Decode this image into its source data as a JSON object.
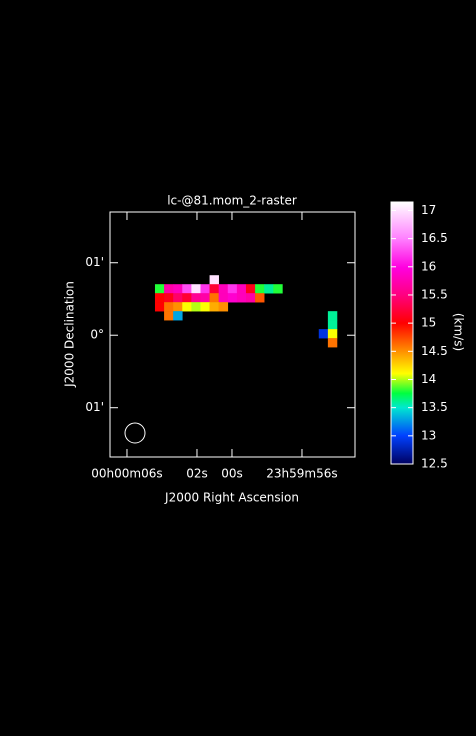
{
  "chart_data": {
    "type": "heatmap",
    "title": "lc-@81.mom_2-raster",
    "xlabel": "J2000 Right Ascension",
    "ylabel": "J2000 Declination",
    "colorbar_label": "(km/s)",
    "xlim": [
      6.97,
      -7.03
    ],
    "xticks": [
      {
        "value": 6,
        "label": "00h00m06s"
      },
      {
        "value": 2,
        "label": "02s"
      },
      {
        "value": 0,
        "label": "00s"
      },
      {
        "value": -4,
        "label": "23h59m56s"
      }
    ],
    "ylim": [
      -1.68,
      1.7
    ],
    "yticks": [
      {
        "value": 1,
        "label": "01'"
      },
      {
        "value": 0,
        "label": "0°"
      },
      {
        "value": -1,
        "label": "01'"
      }
    ],
    "zlim": [
      12.5,
      17.15
    ],
    "zticks": [
      12.5,
      13,
      13.5,
      14,
      14.5,
      15,
      15.5,
      16,
      16.5,
      17
    ],
    "x": [
      4.14,
      3.62,
      3.1,
      2.58,
      2.06,
      1.54,
      1.02,
      0.5,
      -0.02,
      -0.54,
      -1.06,
      -1.58,
      -2.1,
      -2.62,
      -3.14,
      -3.66,
      -4.18,
      -4.7,
      -5.22,
      -5.74
    ],
    "y": [
      0.766,
      0.642,
      0.518,
      0.394,
      0.27,
      0.146,
      0.022,
      -0.102
    ],
    "z": [
      [
        null,
        null,
        null,
        null,
        null,
        null,
        17,
        null,
        null,
        null,
        null,
        null,
        null,
        null,
        null,
        null,
        null,
        null,
        null,
        null
      ],
      [
        13.8,
        15.7,
        15.8,
        16.3,
        17,
        16.2,
        15.2,
        15.8,
        16.2,
        15.8,
        15.1,
        13.8,
        13.6,
        13.8,
        null,
        null,
        null,
        null,
        null,
        null
      ],
      [
        15.0,
        15.1,
        15.4,
        15.2,
        15.6,
        15.7,
        14.6,
        15.8,
        15.9,
        15.8,
        15.7,
        14.7,
        null,
        null,
        null,
        null,
        null,
        null,
        null,
        null
      ],
      [
        15.0,
        14.6,
        14.5,
        14.1,
        14.0,
        14.1,
        14.4,
        14.5,
        null,
        null,
        null,
        null,
        null,
        null,
        null,
        null,
        null,
        null,
        null,
        null
      ],
      [
        null,
        14.6,
        13.3,
        null,
        null,
        null,
        null,
        null,
        null,
        null,
        null,
        null,
        null,
        null,
        null,
        null,
        null,
        null,
        null,
        13.6
      ],
      [
        null,
        null,
        null,
        null,
        null,
        null,
        null,
        null,
        null,
        null,
        null,
        null,
        null,
        null,
        null,
        null,
        null,
        null,
        null,
        13.6
      ],
      [
        null,
        null,
        null,
        null,
        null,
        null,
        null,
        null,
        null,
        null,
        null,
        null,
        null,
        null,
        null,
        null,
        null,
        null,
        12.9,
        14.1
      ],
      [
        null,
        null,
        null,
        null,
        null,
        null,
        null,
        null,
        null,
        null,
        null,
        null,
        null,
        null,
        null,
        null,
        null,
        null,
        null,
        14.6
      ]
    ]
  }
}
